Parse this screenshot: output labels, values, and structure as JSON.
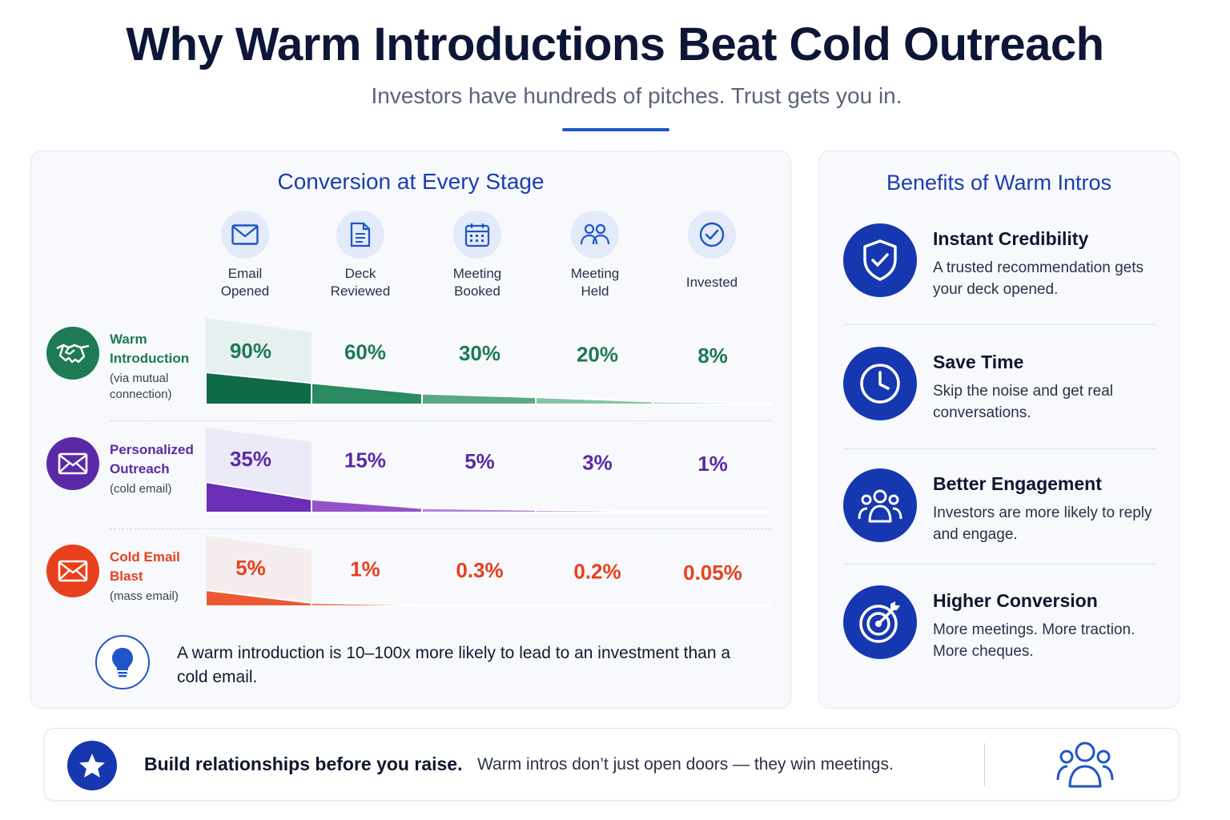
{
  "title": "Why Warm Introductions Beat Cold Outreach",
  "subtitle": "Investors have hundreds of pitches. Trust gets you in.",
  "colors": {
    "warm": "#1e7a55",
    "personalized": "#5a2aa6",
    "cold": "#e8401c",
    "accent": "#1537b0"
  },
  "chart_data": {
    "type": "bar",
    "title": "Conversion at Every Stage",
    "categories": [
      "Email Opened",
      "Deck Reviewed",
      "Meeting Booked",
      "Meeting Held",
      "Invested"
    ],
    "unit": "%",
    "series": [
      {
        "name": "Warm Introduction",
        "note": "(via mutual connection)",
        "values": [
          90,
          60,
          30,
          20,
          8
        ],
        "labels": [
          "90%",
          "60%",
          "30%",
          "20%",
          "8%"
        ]
      },
      {
        "name": "Personalized Outreach",
        "note": "(cold email)",
        "values": [
          35,
          15,
          5,
          3,
          1
        ],
        "labels": [
          "35%",
          "15%",
          "5%",
          "3%",
          "1%"
        ]
      },
      {
        "name": "Cold Email Blast",
        "note": "(mass email)",
        "values": [
          5,
          1,
          0.3,
          0.2,
          0.05
        ],
        "labels": [
          "5%",
          "1%",
          "0.3%",
          "0.2%",
          "0.05%"
        ]
      }
    ]
  },
  "stage_icons": [
    "envelope-icon",
    "document-icon",
    "calendar-icon",
    "people-icon",
    "check-circle-icon"
  ],
  "channels": [
    {
      "name_line1": "Warm",
      "name_line2": "Introduction",
      "sub_line1": "(via mutual",
      "sub_line2": "connection)",
      "icon": "handshake-icon"
    },
    {
      "name_line1": "Personalized",
      "name_line2": "Outreach",
      "sub_line1": "(cold email)",
      "icon": "envelope-icon"
    },
    {
      "name_line1": "Cold Email",
      "name_line2": "Blast",
      "sub_line1": "(mass email)",
      "icon": "envelope-icon"
    }
  ],
  "stage_label_lines": [
    [
      "Email",
      "Opened"
    ],
    [
      "Deck",
      "Reviewed"
    ],
    [
      "Meeting",
      "Booked"
    ],
    [
      "Meeting",
      "Held"
    ],
    [
      "Invested"
    ]
  ],
  "insight": {
    "icon": "lightbulb-icon",
    "text": "A warm introduction is 10–100x more likely to lead to an investment than a cold email."
  },
  "benefits": {
    "title": "Benefits of Warm Intros",
    "items": [
      {
        "icon": "shield-check-icon",
        "title": "Instant Credibility",
        "desc": "A trusted recommendation gets your deck opened."
      },
      {
        "icon": "clock-icon",
        "title": "Save Time",
        "desc": "Skip the noise and get real conversations."
      },
      {
        "icon": "group-icon",
        "title": "Better Engagement",
        "desc": "Investors are more likely to reply and engage."
      },
      {
        "icon": "target-icon",
        "title": "Higher Conversion",
        "desc": "More meetings. More traction. More cheques."
      }
    ]
  },
  "banner": {
    "icon": "star-icon",
    "bold": "Build relationships before you raise.",
    "text": "Warm intros don’t just open doors — they win meetings.",
    "right_icon": "people-icon"
  }
}
